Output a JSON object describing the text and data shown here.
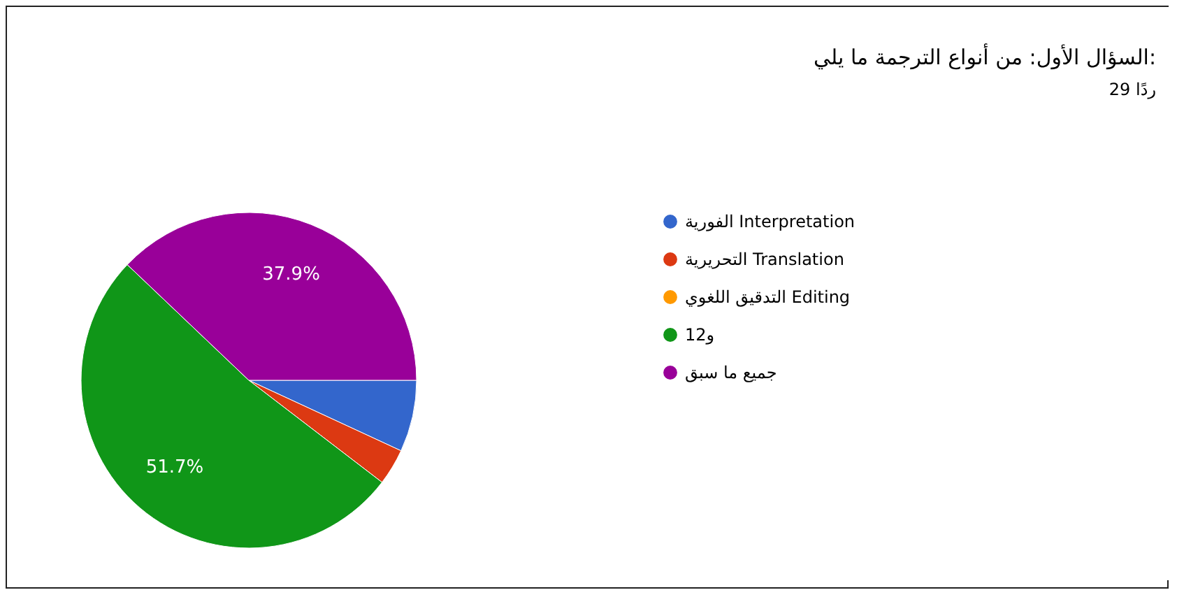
{
  "chart_data": {
    "type": "pie",
    "title": "السؤال الأول: من أنواع الترجمة ما يلي:",
    "subtitle": "29 ردًا",
    "categories": [
      "الفورية Interpretation",
      "التحريرية Translation",
      "التدقيق اللغوي Editing",
      "و12",
      "جميع ما سبق"
    ],
    "values": [
      6.9,
      3.5,
      0,
      51.7,
      37.9
    ],
    "colors": [
      "#3366cc",
      "#dc3912",
      "#ff9900",
      "#109618",
      "#990099"
    ],
    "value_labels": [
      null,
      null,
      null,
      "51.7%",
      "37.9%"
    ],
    "legend": "right"
  }
}
